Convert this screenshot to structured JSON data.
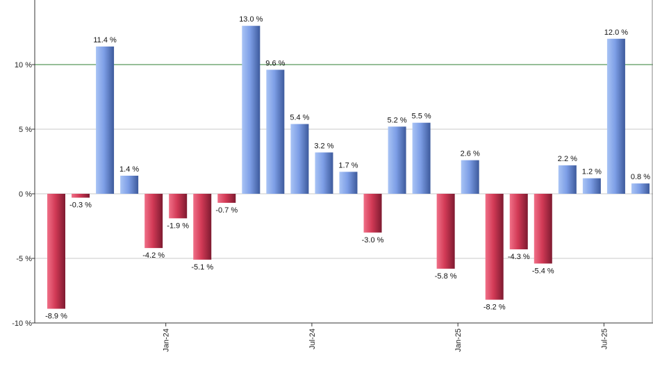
{
  "chart_data": {
    "type": "bar",
    "values": [
      -8.9,
      -0.3,
      11.4,
      1.4,
      -4.2,
      -1.9,
      -5.1,
      -0.7,
      13.0,
      9.6,
      5.4,
      3.2,
      1.7,
      -3.0,
      5.2,
      5.5,
      -5.8,
      2.6,
      -8.2,
      -4.3,
      -5.4,
      2.2,
      1.2,
      12.0,
      0.8
    ],
    "labels": [
      "-8.9 %",
      "-0.3 %",
      "11.4 %",
      "1.4 %",
      "-4.2 %",
      "-1.9 %",
      "-5.1 %",
      "-0.7 %",
      "13.0 %",
      "9.6 %",
      "5.4 %",
      "3.2 %",
      "1.7 %",
      "-3.0 %",
      "5.2 %",
      "5.5 %",
      "-5.8 %",
      "2.6 %",
      "-8.2 %",
      "-4.3 %",
      "-5.4 %",
      "2.2 %",
      "1.2 %",
      "12.0 %",
      "0.8 %"
    ],
    "ylim": [
      -10,
      14
    ],
    "yticks": [
      {
        "value": 10,
        "label": "10 %"
      },
      {
        "value": 5,
        "label": "5 %"
      },
      {
        "value": 0,
        "label": "0 %"
      },
      {
        "value": -5,
        "label": "-5 %"
      },
      {
        "value": -10,
        "label": "-10 %"
      }
    ],
    "xticks": [
      {
        "index": 4.5,
        "label": "Jan-24"
      },
      {
        "index": 10.5,
        "label": "Jul-24"
      },
      {
        "index": 16.5,
        "label": "Jan-25"
      },
      {
        "index": 22.5,
        "label": "Jul-25"
      }
    ],
    "reference_line": 10,
    "grid": true,
    "colors": {
      "positive": "#6d8fe0",
      "negative": "#c8324c",
      "reference_line": "#2e7d32",
      "grid": "#c8c8c8",
      "axis": "#333333"
    }
  }
}
